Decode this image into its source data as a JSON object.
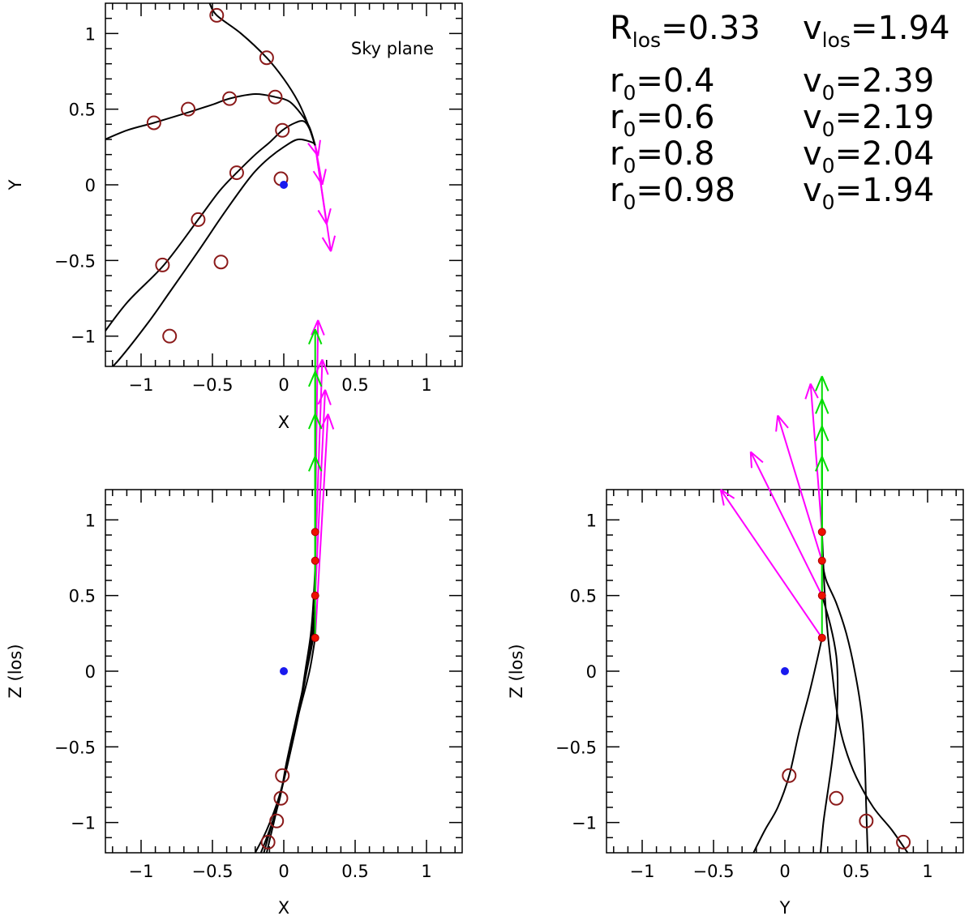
{
  "chart_data": [
    {
      "id": "sky",
      "type": "scatter",
      "title": "",
      "annotation": "Sky plane",
      "xlabel": "X",
      "ylabel": "Y",
      "xlim": [
        -1.25,
        1.25
      ],
      "ylim": [
        -1.2,
        1.2
      ],
      "xticks": [
        -1,
        -0.5,
        0,
        0.5,
        1
      ],
      "xtick_labels": [
        "−1",
        "−0.5",
        "0",
        "0.5",
        "1"
      ],
      "yticks": [
        -1,
        -0.5,
        0,
        0.5,
        1
      ],
      "ytick_labels": [
        "−1",
        "−0.5",
        "0",
        "0.5",
        "1"
      ],
      "grid": false,
      "center_point": [
        0,
        0
      ],
      "trajectories": [
        {
          "name": "r0=0.4",
          "points": [
            [
              -1.3,
              -1.3
            ],
            [
              -1.15,
              -1.15
            ],
            [
              -0.95,
              -0.91
            ],
            [
              -0.8,
              -0.71
            ],
            [
              -0.6,
              -0.44
            ],
            [
              -0.45,
              -0.23
            ],
            [
              -0.3,
              -0.03
            ],
            [
              -0.2,
              0.09
            ],
            [
              -0.1,
              0.18
            ],
            [
              0,
              0.25
            ],
            [
              0.1,
              0.3
            ],
            [
              0.2,
              0.28
            ],
            [
              0.22,
              0.26
            ]
          ]
        },
        {
          "name": "r0=0.6",
          "points": [
            [
              -1.3,
              -1.03
            ],
            [
              -1.1,
              -0.78
            ],
            [
              -0.84,
              -0.53
            ],
            [
              -0.6,
              -0.23
            ],
            [
              -0.45,
              -0.04
            ],
            [
              -0.33,
              0.08
            ],
            [
              -0.2,
              0.2
            ],
            [
              -0.1,
              0.28
            ],
            [
              -0.01,
              0.36
            ],
            [
              0.08,
              0.41
            ],
            [
              0.14,
              0.42
            ],
            [
              0.18,
              0.37
            ],
            [
              0.22,
              0.26
            ]
          ]
        },
        {
          "name": "r0=0.8",
          "points": [
            [
              -1.3,
              0.28
            ],
            [
              -1.1,
              0.36
            ],
            [
              -0.91,
              0.41
            ],
            [
              -0.7,
              0.47
            ],
            [
              -0.5,
              0.53
            ],
            [
              -0.38,
              0.57
            ],
            [
              -0.2,
              0.6
            ],
            [
              -0.06,
              0.58
            ],
            [
              0.04,
              0.55
            ],
            [
              0.12,
              0.47
            ],
            [
              0.18,
              0.38
            ],
            [
              0.22,
              0.26
            ]
          ]
        },
        {
          "name": "r0=0.98",
          "points": [
            [
              -0.52,
              1.2
            ],
            [
              -0.47,
              1.12
            ],
            [
              -0.3,
              1.0
            ],
            [
              -0.12,
              0.84
            ],
            [
              0.0,
              0.7
            ],
            [
              0.1,
              0.55
            ],
            [
              0.17,
              0.4
            ],
            [
              0.22,
              0.26
            ]
          ]
        }
      ],
      "markers": [
        [
          -0.8,
          -1.0
        ],
        [
          -0.44,
          -0.51
        ],
        [
          -0.02,
          0.04
        ],
        [
          -0.85,
          -0.53
        ],
        [
          -0.6,
          -0.23
        ],
        [
          -0.33,
          0.08
        ],
        [
          -0.01,
          0.36
        ],
        [
          -0.91,
          0.41
        ],
        [
          -0.67,
          0.5
        ],
        [
          -0.38,
          0.57
        ],
        [
          -0.06,
          0.58
        ],
        [
          -0.47,
          1.12
        ],
        [
          -0.12,
          0.84
        ]
      ],
      "velocity_arrows": [
        {
          "from": [
            0.22,
            0.26
          ],
          "to": [
            0.24,
            0.19
          ]
        },
        {
          "from": [
            0.22,
            0.26
          ],
          "to": [
            0.27,
            0.0
          ]
        },
        {
          "from": [
            0.22,
            0.26
          ],
          "to": [
            0.3,
            -0.26
          ]
        },
        {
          "from": [
            0.22,
            0.26
          ],
          "to": [
            0.33,
            -0.44
          ]
        }
      ]
    },
    {
      "id": "xz",
      "type": "scatter",
      "title": "",
      "xlabel": "X",
      "ylabel": "Z (los)",
      "xlim": [
        -1.25,
        1.25
      ],
      "ylim": [
        -1.2,
        1.2
      ],
      "xticks": [
        -1,
        -0.5,
        0,
        0.5,
        1
      ],
      "xtick_labels": [
        "−1",
        "−0.5",
        "0",
        "0.5",
        "1"
      ],
      "yticks": [
        -1,
        -0.5,
        0,
        0.5,
        1
      ],
      "ytick_labels": [
        "−1",
        "−0.5",
        "0",
        "0.5",
        "1"
      ],
      "grid": false,
      "center_point": [
        0,
        0
      ],
      "trajectories": [
        {
          "name": "r0=0.4",
          "points": [
            [
              0.22,
              0.92
            ],
            [
              0.22,
              0.7
            ],
            [
              0.21,
              0.5
            ],
            [
              0.19,
              0.25
            ],
            [
              0.15,
              0.0
            ],
            [
              0.1,
              -0.3
            ],
            [
              0.03,
              -0.6
            ],
            [
              -0.02,
              -0.8
            ],
            [
              -0.08,
              -1.0
            ],
            [
              -0.14,
              -1.2
            ]
          ]
        },
        {
          "name": "r0=0.6",
          "points": [
            [
              0.22,
              0.73
            ],
            [
              0.22,
              0.5
            ],
            [
              0.2,
              0.25
            ],
            [
              0.16,
              0.0
            ],
            [
              0.1,
              -0.3
            ],
            [
              0.04,
              -0.55
            ],
            [
              -0.02,
              -0.8
            ],
            [
              -0.07,
              -1.0
            ],
            [
              -0.12,
              -1.2
            ]
          ]
        },
        {
          "name": "r0=0.8",
          "points": [
            [
              0.22,
              0.5
            ],
            [
              0.21,
              0.25
            ],
            [
              0.16,
              0.0
            ],
            [
              0.09,
              -0.3
            ],
            [
              0.02,
              -0.6
            ],
            [
              -0.03,
              -0.85
            ],
            [
              -0.1,
              -1.05
            ],
            [
              -0.16,
              -1.2
            ]
          ]
        },
        {
          "name": "r0=0.98",
          "points": [
            [
              0.22,
              0.22
            ],
            [
              0.18,
              0.0
            ],
            [
              0.1,
              -0.3
            ],
            [
              0.03,
              -0.6
            ],
            [
              -0.04,
              -0.85
            ],
            [
              -0.12,
              -1.05
            ],
            [
              -0.2,
              -1.2
            ]
          ]
        }
      ],
      "markers": [
        [
          -0.01,
          -0.69
        ],
        [
          -0.02,
          -0.84
        ],
        [
          -0.05,
          -0.99
        ],
        [
          -0.11,
          -1.13
        ]
      ],
      "position_points": [
        [
          0.22,
          0.92
        ],
        [
          0.22,
          0.73
        ],
        [
          0.22,
          0.5
        ],
        [
          0.22,
          0.22
        ]
      ],
      "velocity_arrows": [
        {
          "from": [
            0.22,
            0.22
          ],
          "to": [
            0.31,
            1.7
          ],
          "color": "#ff00ff"
        },
        {
          "from": [
            0.22,
            0.5
          ],
          "to": [
            0.29,
            1.86
          ],
          "color": "#ff00ff"
        },
        {
          "from": [
            0.22,
            0.73
          ],
          "to": [
            0.27,
            2.06
          ],
          "color": "#ff00ff"
        },
        {
          "from": [
            0.22,
            0.92
          ],
          "to": [
            0.24,
            2.32
          ],
          "color": "#ff00ff"
        },
        {
          "from": [
            0.22,
            0.22
          ],
          "to": [
            0.22,
            1.42
          ],
          "color": "#00dd00"
        },
        {
          "from": [
            0.22,
            0.5
          ],
          "to": [
            0.22,
            1.7
          ],
          "color": "#00dd00"
        },
        {
          "from": [
            0.22,
            0.73
          ],
          "to": [
            0.22,
            1.98
          ],
          "color": "#00dd00"
        },
        {
          "from": [
            0.22,
            0.92
          ],
          "to": [
            0.22,
            2.26
          ],
          "color": "#00dd00"
        }
      ]
    },
    {
      "id": "yz",
      "type": "scatter",
      "title": "",
      "xlabel": "Y",
      "ylabel": "Z (los)",
      "xlim": [
        -1.25,
        1.25
      ],
      "ylim": [
        -1.2,
        1.2
      ],
      "xticks": [
        -1,
        -0.5,
        0,
        0.5,
        1
      ],
      "xtick_labels": [
        "−1",
        "−0.5",
        "0",
        "0.5",
        "1"
      ],
      "yticks": [
        -1,
        -0.5,
        0,
        0.5,
        1
      ],
      "ytick_labels": [
        "−1",
        "−0.5",
        "0",
        "0.5",
        "1"
      ],
      "grid": false,
      "center_point": [
        0,
        0
      ],
      "trajectories": [
        {
          "name": "r0=0.4",
          "points": [
            [
              0.26,
              0.92
            ],
            [
              0.27,
              0.7
            ],
            [
              0.28,
              0.5
            ],
            [
              0.3,
              0.25
            ],
            [
              0.33,
              0.0
            ],
            [
              0.37,
              -0.3
            ],
            [
              0.42,
              -0.5
            ],
            [
              0.5,
              -0.7
            ],
            [
              0.62,
              -0.9
            ],
            [
              0.75,
              -1.05
            ],
            [
              0.86,
              -1.2
            ]
          ]
        },
        {
          "name": "r0=0.6",
          "points": [
            [
              0.26,
              0.73
            ],
            [
              0.29,
              0.6
            ],
            [
              0.36,
              0.45
            ],
            [
              0.43,
              0.25
            ],
            [
              0.49,
              0.0
            ],
            [
              0.54,
              -0.3
            ],
            [
              0.56,
              -0.6
            ],
            [
              0.57,
              -0.9
            ],
            [
              0.58,
              -1.2
            ]
          ]
        },
        {
          "name": "r0=0.8",
          "points": [
            [
              0.26,
              0.5
            ],
            [
              0.32,
              0.3
            ],
            [
              0.36,
              0.1
            ],
            [
              0.37,
              -0.1
            ],
            [
              0.36,
              -0.35
            ],
            [
              0.33,
              -0.6
            ],
            [
              0.3,
              -0.8
            ],
            [
              0.27,
              -1.0
            ],
            [
              0.25,
              -1.2
            ]
          ]
        },
        {
          "name": "r0=0.98",
          "points": [
            [
              0.26,
              0.22
            ],
            [
              0.22,
              0.05
            ],
            [
              0.17,
              -0.15
            ],
            [
              0.1,
              -0.4
            ],
            [
              0.03,
              -0.69
            ],
            [
              -0.05,
              -0.9
            ],
            [
              -0.14,
              -1.05
            ],
            [
              -0.22,
              -1.2
            ]
          ]
        }
      ],
      "markers": [
        [
          0.03,
          -0.69
        ],
        [
          0.36,
          -0.84
        ],
        [
          0.57,
          -0.99
        ],
        [
          0.83,
          -1.13
        ]
      ],
      "position_points": [
        [
          0.26,
          0.92
        ],
        [
          0.26,
          0.73
        ],
        [
          0.26,
          0.5
        ],
        [
          0.26,
          0.22
        ]
      ],
      "velocity_arrows": [
        {
          "from": [
            0.26,
            0.22
          ],
          "to": [
            -0.45,
            1.2
          ],
          "color": "#ff00ff"
        },
        {
          "from": [
            0.26,
            0.5
          ],
          "to": [
            -0.24,
            1.45
          ],
          "color": "#ff00ff"
        },
        {
          "from": [
            0.26,
            0.73
          ],
          "to": [
            -0.05,
            1.69
          ],
          "color": "#ff00ff"
        },
        {
          "from": [
            0.26,
            0.92
          ],
          "to": [
            0.18,
            1.9
          ],
          "color": "#ff00ff"
        },
        {
          "from": [
            0.26,
            0.22
          ],
          "to": [
            0.26,
            1.42
          ],
          "color": "#00dd00"
        },
        {
          "from": [
            0.26,
            0.5
          ],
          "to": [
            0.26,
            1.62
          ],
          "color": "#00dd00"
        },
        {
          "from": [
            0.26,
            0.73
          ],
          "to": [
            0.26,
            1.8
          ],
          "color": "#00dd00"
        },
        {
          "from": [
            0.26,
            0.92
          ],
          "to": [
            0.26,
            1.95
          ],
          "color": "#00dd00"
        }
      ]
    }
  ],
  "legend": {
    "header": {
      "r_base": "R",
      "r_sub": "los",
      "r_val": "=0.33",
      "v_base": "v",
      "v_sub": "los",
      "v_val": "=1.94"
    },
    "rows": [
      {
        "r_base": "r",
        "r_sub": "0",
        "r_val": "=0.4",
        "v_base": "v",
        "v_sub": "0",
        "v_val": "=2.39"
      },
      {
        "r_base": "r",
        "r_sub": "0",
        "r_val": "=0.6",
        "v_base": "v",
        "v_sub": "0",
        "v_val": "=2.19"
      },
      {
        "r_base": "r",
        "r_sub": "0",
        "r_val": "=0.8",
        "v_base": "v",
        "v_sub": "0",
        "v_val": "=2.04"
      },
      {
        "r_base": "r",
        "r_sub": "0",
        "r_val": "=0.98",
        "v_base": "v",
        "v_sub": "0",
        "v_val": "=1.94"
      }
    ]
  },
  "colors": {
    "trajectory": "#000000",
    "marker": "#8b1a1a",
    "position_point": "#ee1100",
    "center_point": "#1a1aee",
    "sky_velocity": "#ff00ff",
    "los_velocity": "#00dd00"
  }
}
